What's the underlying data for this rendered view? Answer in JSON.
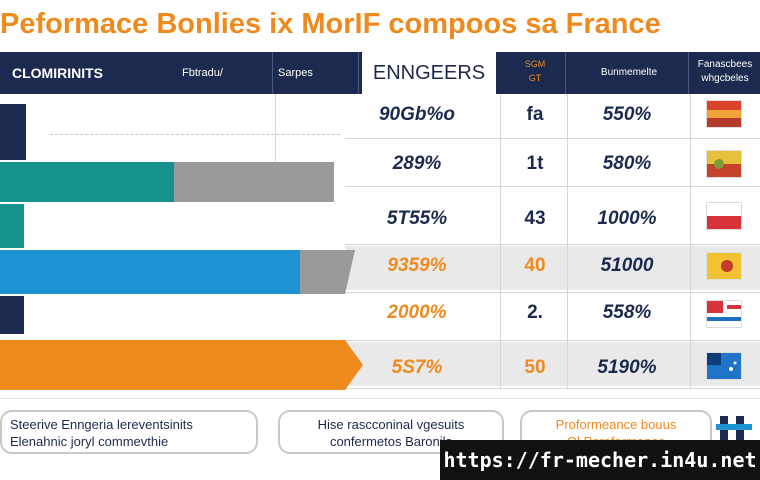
{
  "title": "Peformace Bonlies ix MorIF compoos sa France",
  "header": {
    "col1": "CLOMIRINITS",
    "col2": "Fbtradu/",
    "col3": "Sarpes",
    "col4": "ENNGEERS",
    "col5_line1": "SGM",
    "col5_line2": "GT",
    "col6": "Bunmemelte",
    "col7_line1": "Fanascbees",
    "col7_line2": "whgcbeles"
  },
  "rows": [
    {
      "pct": "90Gb%o",
      "mid": "fa",
      "val": "550%",
      "pct_color": "navy",
      "mid_color": "navy"
    },
    {
      "pct": "289%",
      "mid": "1t",
      "val": "580%",
      "pct_color": "navy",
      "mid_color": "navy"
    },
    {
      "pct": "5T55%",
      "mid": "43",
      "val": "1000%",
      "pct_color": "navy",
      "mid_color": "navy"
    },
    {
      "pct": "9359%",
      "mid": "40",
      "val": "51000",
      "pct_color": "orange",
      "mid_color": "orange"
    },
    {
      "pct": "2000%",
      "mid": "2.",
      "val": "558%",
      "pct_color": "orange",
      "mid_color": "navy"
    },
    {
      "pct": "5S7%",
      "mid": "50",
      "val": "5190%",
      "pct_color": "orange",
      "mid_color": "orange"
    }
  ],
  "colors": {
    "navy": "#1b2a4e",
    "teal": "#16928f",
    "blue": "#1f94d2",
    "orange": "#ee8a1e",
    "gray": "#9a9a9a"
  },
  "chart_data": {
    "type": "bar",
    "orientation": "horizontal",
    "series": [
      {
        "values": [
          26,
          174,
          24,
          300,
          24,
          345
        ],
        "colors": [
          "#1b2a4e",
          "#16928f",
          "#16928f",
          "#1f94d2",
          "#1b2a4e",
          "#ee8a1e"
        ]
      },
      {
        "values": [
          0,
          160,
          0,
          55,
          0,
          0
        ],
        "colors": [
          "#9a9a9a",
          "#9a9a9a",
          "#9a9a9a",
          "#9a9a9a",
          "#9a9a9a",
          "#9a9a9a"
        ]
      }
    ],
    "categories": [
      "",
      "",
      "",
      "",
      "",
      ""
    ],
    "xlabel": "",
    "ylabel": "",
    "grid": true
  },
  "footer": {
    "box1_line1": "Steerive Enngeria lereventsinits",
    "box1_line2": "Elenahnic joryl commevthie",
    "box2_line1": "Hise rascconinal vgesuits",
    "box2_line2": "confermetos Baronils",
    "box3_line1": "Proformeance bouus",
    "box3_line2": "Ol Peraformance",
    "url": "https://fr-mecher.in4u.net"
  }
}
